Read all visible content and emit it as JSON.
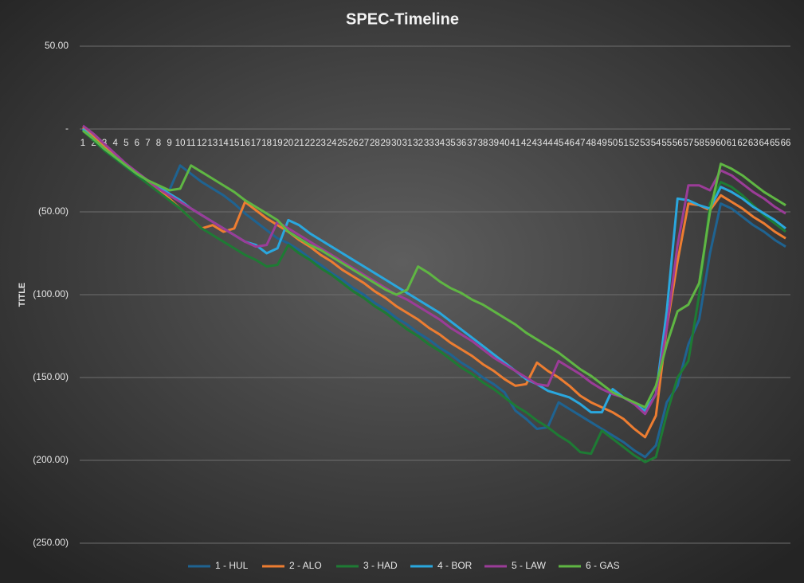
{
  "chart_data": {
    "type": "line",
    "title": "SPEC-Timeline",
    "y_label": "TITLE",
    "categories": [
      1,
      2,
      3,
      4,
      5,
      6,
      7,
      8,
      9,
      10,
      11,
      12,
      13,
      14,
      15,
      16,
      17,
      18,
      19,
      20,
      21,
      22,
      23,
      24,
      25,
      26,
      27,
      28,
      29,
      30,
      31,
      32,
      33,
      34,
      35,
      36,
      37,
      38,
      39,
      40,
      41,
      42,
      43,
      44,
      45,
      46,
      47,
      48,
      49,
      50,
      51,
      52,
      53,
      54,
      55,
      56,
      57,
      58,
      59,
      60,
      61,
      62,
      63,
      64,
      65,
      66
    ],
    "series": [
      {
        "name": "1 - HUL",
        "color": "#1f6391",
        "values": [
          0,
          -5,
          -11,
          -17,
          -23,
          -28,
          -32,
          -36,
          -37,
          -22,
          -27,
          -32,
          -36,
          -40,
          -45,
          -51,
          -56,
          -61,
          -66,
          -69,
          -73,
          -78,
          -82,
          -87,
          -91,
          -96,
          -100,
          -105,
          -109,
          -114,
          -118,
          -123,
          -127,
          -132,
          -136,
          -141,
          -145,
          -150,
          -154,
          -159,
          -170,
          -175,
          -181,
          -180,
          -165,
          -169,
          -173,
          -177,
          -181,
          -185,
          -189,
          -194,
          -198,
          -191,
          -165,
          -155,
          -130,
          -115,
          -75,
          -45,
          -48,
          -53,
          -58,
          -62,
          -67,
          -71
        ]
      },
      {
        "name": "2 - ALO",
        "color": "#ed7d31",
        "values": [
          1,
          -5,
          -11,
          -16,
          -22,
          -27,
          -32,
          -37,
          -42,
          -48,
          -54,
          -60,
          -58,
          -62,
          -60,
          -44,
          -49,
          -54,
          -58,
          -62,
          -67,
          -71,
          -76,
          -80,
          -85,
          -89,
          -93,
          -98,
          -102,
          -107,
          -111,
          -115,
          -120,
          -124,
          -129,
          -133,
          -137,
          -142,
          -146,
          -151,
          -155,
          -154,
          -141,
          -146,
          -150,
          -155,
          -161,
          -165,
          -168,
          -171,
          -175,
          -181,
          -186,
          -173,
          -120,
          -80,
          -45,
          -46,
          -49,
          -40,
          -44,
          -48,
          -53,
          -57,
          -62,
          -66
        ]
      },
      {
        "name": "3 - HAD",
        "color": "#1e7b34",
        "values": [
          -1,
          -7,
          -13,
          -18,
          -23,
          -28,
          -33,
          -38,
          -43,
          -48,
          -54,
          -60,
          -64,
          -68,
          -72,
          -76,
          -79,
          -83,
          -82,
          -70,
          -75,
          -79,
          -84,
          -88,
          -93,
          -98,
          -102,
          -107,
          -111,
          -116,
          -121,
          -125,
          -130,
          -134,
          -139,
          -144,
          -148,
          -153,
          -157,
          -162,
          -167,
          -171,
          -176,
          -180,
          -185,
          -189,
          -195,
          -196,
          -182,
          -187,
          -192,
          -197,
          -201,
          -198,
          -172,
          -150,
          -140,
          -100,
          -45,
          -32,
          -35,
          -40,
          -46,
          -52,
          -57,
          -62
        ]
      },
      {
        "name": "4 - BOR",
        "color": "#2aa7de",
        "values": [
          0,
          -6,
          -12,
          -17,
          -22,
          -27,
          -31,
          -35,
          -39,
          -43,
          -48,
          -52,
          -56,
          -60,
          -64,
          -68,
          -70,
          -75,
          -72,
          -55,
          -58,
          -63,
          -67,
          -71,
          -75,
          -79,
          -83,
          -87,
          -91,
          -95,
          -99,
          -103,
          -107,
          -111,
          -116,
          -121,
          -126,
          -131,
          -136,
          -141,
          -146,
          -151,
          -154,
          -158,
          -160,
          -162,
          -166,
          -171,
          -171,
          -157,
          -162,
          -166,
          -170,
          -160,
          -110,
          -42,
          -43,
          -46,
          -48,
          -35,
          -38,
          -42,
          -47,
          -51,
          -55,
          -60
        ]
      },
      {
        "name": "5 - LAW",
        "color": "#9b3c98",
        "values": [
          2,
          -3,
          -9,
          -15,
          -21,
          -26,
          -31,
          -36,
          -40,
          -44,
          -48,
          -52,
          -56,
          -60,
          -64,
          -68,
          -71,
          -70,
          -56,
          -60,
          -64,
          -68,
          -72,
          -76,
          -80,
          -84,
          -88,
          -92,
          -96,
          -100,
          -103,
          -107,
          -111,
          -115,
          -120,
          -124,
          -128,
          -133,
          -138,
          -142,
          -146,
          -150,
          -154,
          -155,
          -140,
          -144,
          -148,
          -153,
          -157,
          -160,
          -162,
          -166,
          -172,
          -160,
          -120,
          -70,
          -34,
          -34,
          -37,
          -25,
          -28,
          -33,
          -38,
          -42,
          -47,
          -51
        ]
      },
      {
        "name": "6 - GAS",
        "color": "#5fb643",
        "values": [
          -1,
          -6,
          -12,
          -17,
          -22,
          -27,
          -31,
          -34,
          -37,
          -36,
          -22,
          -26,
          -30,
          -34,
          -38,
          -43,
          -47,
          -51,
          -55,
          -62,
          -66,
          -70,
          -73,
          -77,
          -81,
          -85,
          -89,
          -93,
          -97,
          -100,
          -97,
          -83,
          -87,
          -92,
          -96,
          -99,
          -103,
          -106,
          -110,
          -114,
          -118,
          -123,
          -127,
          -131,
          -135,
          -140,
          -145,
          -149,
          -154,
          -159,
          -162,
          -165,
          -168,
          -155,
          -130,
          -110,
          -106,
          -93,
          -50,
          -21,
          -24,
          -28,
          -33,
          -38,
          -42,
          -46
        ]
      }
    ],
    "ylim": [
      -250,
      50
    ],
    "yticks": [
      {
        "value": 50,
        "label": "50.00"
      },
      {
        "value": 0,
        "label": "-"
      },
      {
        "value": -50,
        "label": "(50.00)"
      },
      {
        "value": -100,
        "label": "(100.00)"
      },
      {
        "value": -150,
        "label": "(150.00)"
      },
      {
        "value": -200,
        "label": "(200.00)"
      },
      {
        "value": -250,
        "label": "(250.00)"
      }
    ],
    "grid": true,
    "legend": "bottom"
  }
}
